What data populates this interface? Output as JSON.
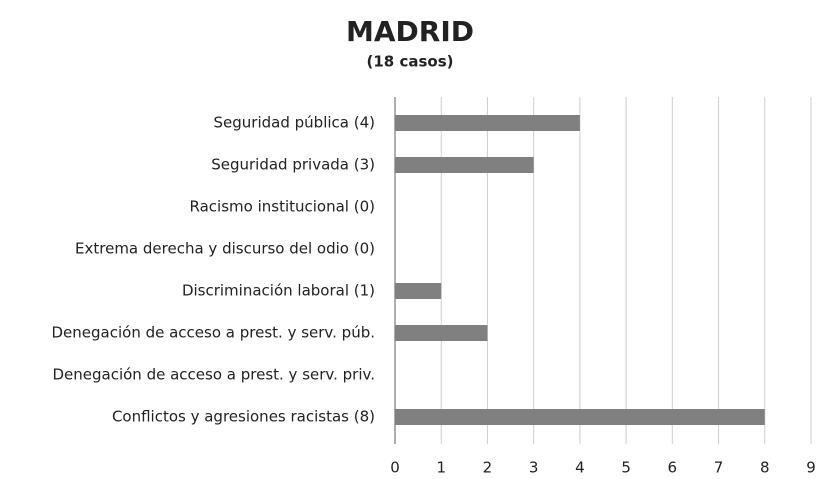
{
  "chart_data": {
    "type": "barh",
    "title": "MADRID",
    "subtitle": "(18 casos)",
    "categories": [
      "Seguridad pública (4)",
      "Seguridad privada (3)",
      "Racismo institucional (0)",
      "Extrema derecha y discurso del odio (0)",
      "Discriminación laboral (1)",
      "Denegación de acceso a prest. y serv. púb.",
      "Denegación de acceso a prest. y serv. priv.",
      "Conflictos y agresiones racistas (8)"
    ],
    "values": [
      4,
      3,
      0,
      0,
      1,
      2,
      0,
      8
    ],
    "color": "#808080",
    "xlim": [
      0,
      9
    ],
    "xticks": [
      0,
      1,
      2,
      3,
      4,
      5,
      6,
      7,
      8,
      9
    ],
    "grid": true
  }
}
